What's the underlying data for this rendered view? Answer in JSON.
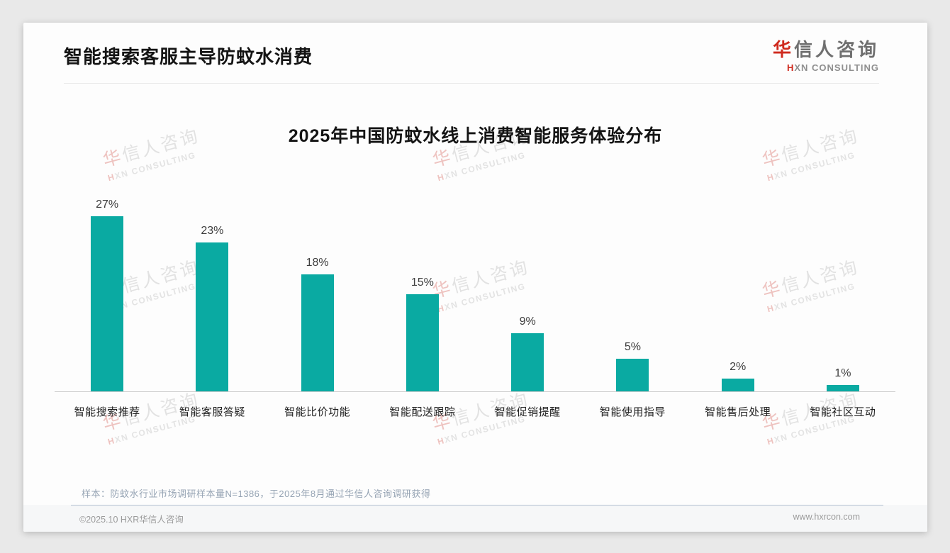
{
  "header": {
    "title": "智能搜索客服主导防蚊水消费",
    "logo": {
      "cn_first": "华",
      "cn_rest": "信人咨询",
      "en_first": "H",
      "en_rest": "XN CONSULTING"
    }
  },
  "watermark": {
    "line1_first": "华",
    "line1_rest": "信人咨询",
    "line2_first": "H",
    "line2_rest": "XN CONSULTING"
  },
  "chart_data": {
    "type": "bar",
    "title": "2025年中国防蚊水线上消费智能服务体验分布",
    "categories": [
      "智能搜索推荐",
      "智能客服答疑",
      "智能比价功能",
      "智能配送跟踪",
      "智能促销提醒",
      "智能使用指导",
      "智能售后处理",
      "智能社区互动"
    ],
    "values": [
      27,
      23,
      18,
      15,
      9,
      5,
      2,
      1
    ],
    "unit": "%",
    "data_label_format": "{value}%",
    "bar_color": "#0aaaa2",
    "ylim": [
      0,
      30
    ],
    "grid": false,
    "legend": "none",
    "xlabel": "",
    "ylabel": ""
  },
  "note": "样本：防蚊水行业市场调研样本量N=1386，于2025年8月通过华信人咨询调研获得",
  "footer": {
    "copyright": "©2025.10 HXR华信人咨询",
    "website": "www.hxrcon.com"
  }
}
